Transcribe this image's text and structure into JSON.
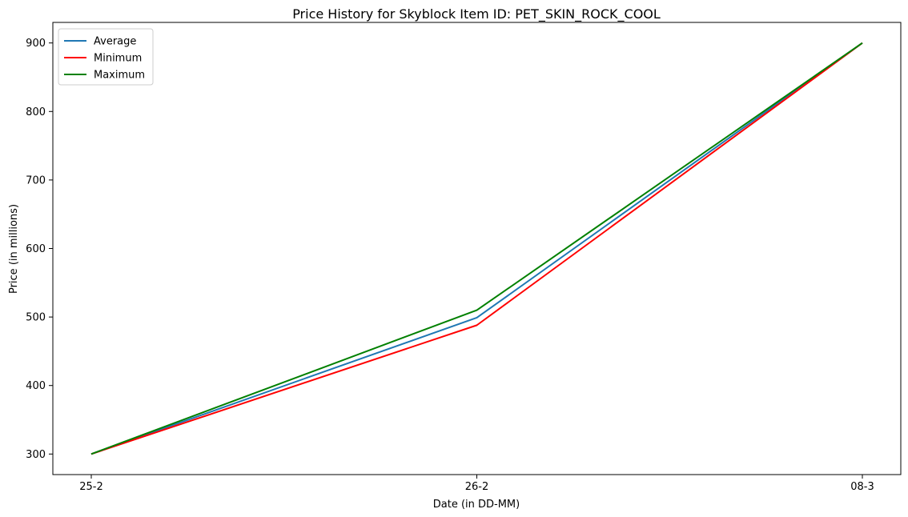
{
  "chart_data": {
    "type": "line",
    "title": "Price History for Skyblock Item ID: PET_SKIN_ROCK_COOL",
    "xlabel": "Date (in DD-MM)",
    "ylabel": "Price (in millions)",
    "categories": [
      "25-2",
      "26-2",
      "08-3"
    ],
    "yticks": [
      300,
      400,
      500,
      600,
      700,
      800,
      900
    ],
    "ylim": [
      270,
      930
    ],
    "grid": false,
    "legend_position": "upper-left",
    "series": [
      {
        "name": "Average",
        "color": "#1f77b4",
        "values": [
          300,
          499,
          900
        ]
      },
      {
        "name": "Minimum",
        "color": "#ff0000",
        "values": [
          300,
          488,
          900
        ]
      },
      {
        "name": "Maximum",
        "color": "#008000",
        "values": [
          300,
          510,
          900
        ]
      }
    ]
  }
}
